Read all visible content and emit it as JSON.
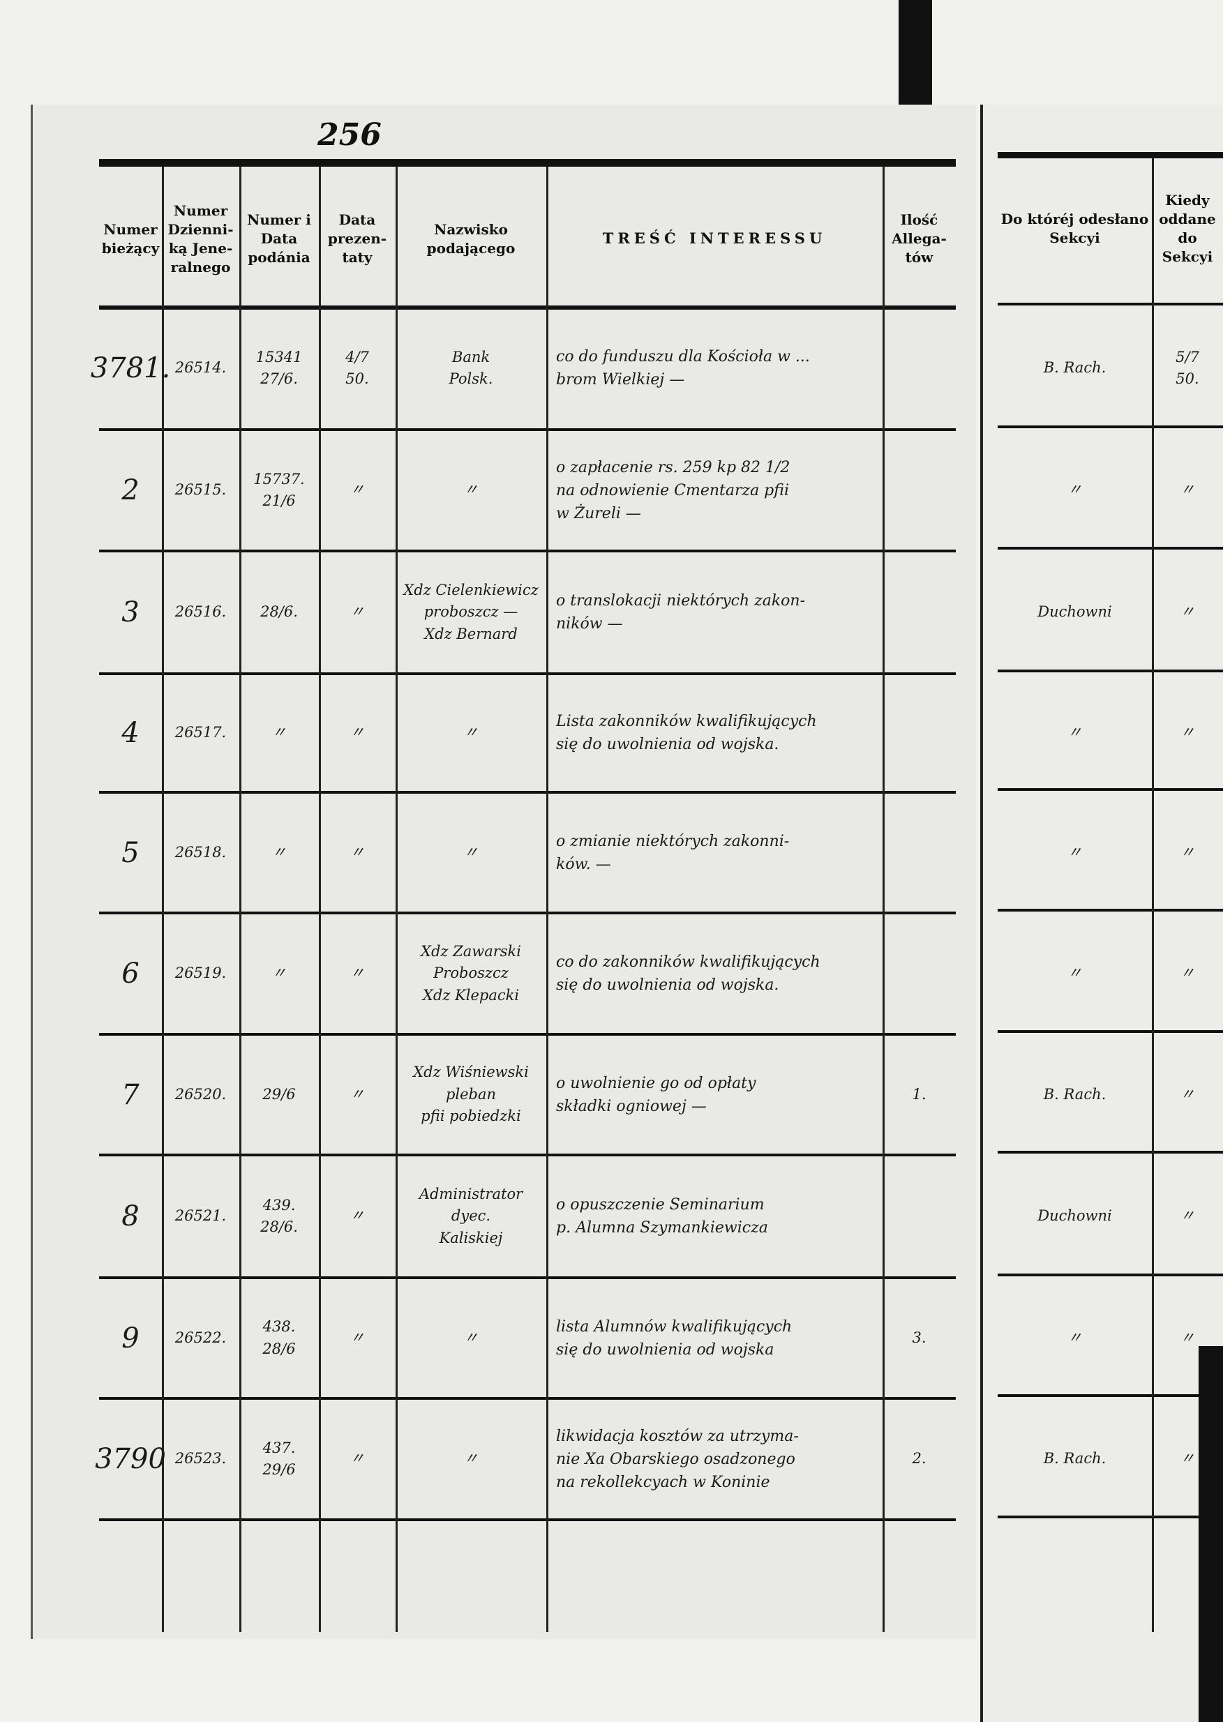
{
  "page_number": "256",
  "headers": {
    "numer_biezacy": "Numer bieżący",
    "numer_dziennika": "Numer Dzienni-ką Jene-ralnego",
    "numer_i_data": "Numer i Data podánia",
    "data_prezentaty": "Data prezen-taty",
    "nazwisko": "Nazwisko podającego",
    "tresc": "TREŚĆ INTERESSU",
    "ilosc": "Ilość Allega-tów",
    "do_ktorej": "Do któréj odesłano Sekcyi",
    "kiedy": "Kiedy oddane do Sekcyi"
  },
  "rows": [
    {
      "numer": "3781.",
      "dziennik": "26514.",
      "numer_data": "15341\n27/6.",
      "prezentata": "4/7\n50.",
      "nazwisko": "Bank\nPolsk.",
      "tresc": "co do funduszu dla Kościoła w ...\nbrom Wielkiej —",
      "ilosc": "",
      "sekcja": "B. Rach.",
      "kiedy": "5/7\n50."
    },
    {
      "numer": "2",
      "dziennik": "26515.",
      "numer_data": "15737.\n21/6",
      "prezentata": "〃",
      "nazwisko": "〃",
      "tresc": "o zapłacenie rs. 259 kp 82 1/2\nna odnowienie Cmentarza pfii\nw Żureli —",
      "ilosc": "",
      "sekcja": "〃",
      "kiedy": "〃"
    },
    {
      "numer": "3",
      "dziennik": "26516.",
      "numer_data": "28/6.",
      "prezentata": "〃",
      "nazwisko": "Xdz Cielenkiewicz\nproboszcz —\nXdz Bernard",
      "tresc": "o translokacji niektórych zakon-\nników —",
      "ilosc": "",
      "sekcja": "Duchowni",
      "kiedy": "〃"
    },
    {
      "numer": "4",
      "dziennik": "26517.",
      "numer_data": "〃",
      "prezentata": "〃",
      "nazwisko": "〃",
      "tresc": "Lista zakonników kwalifikujących\nsię do uwolnienia od wojska.",
      "ilosc": "",
      "sekcja": "〃",
      "kiedy": "〃"
    },
    {
      "numer": "5",
      "dziennik": "26518.",
      "numer_data": "〃",
      "prezentata": "〃",
      "nazwisko": "〃",
      "tresc": "o zmianie niektórych zakonni-\nków. —",
      "ilosc": "",
      "sekcja": "〃",
      "kiedy": "〃"
    },
    {
      "numer": "6",
      "dziennik": "26519.",
      "numer_data": "〃",
      "prezentata": "〃",
      "nazwisko": "Xdz Zawarski\nProboszcz\nXdz Klepacki",
      "tresc": "co do zakonników kwalifikujących\nsię do uwolnienia od wojska.",
      "ilosc": "",
      "sekcja": "〃",
      "kiedy": "〃"
    },
    {
      "numer": "7",
      "dziennik": "26520.",
      "numer_data": "29/6",
      "prezentata": "〃",
      "nazwisko": "Xdz Wiśniewski\npleban\npfii pobiedzki",
      "tresc": "o uwolnienie go od opłaty\nskładki ogniowej —",
      "ilosc": "1.",
      "sekcja": "B. Rach.",
      "kiedy": "〃"
    },
    {
      "numer": "8",
      "dziennik": "26521.",
      "numer_data": "439.\n28/6.",
      "prezentata": "〃",
      "nazwisko": "Administrator\ndyec.\nKaliskiej",
      "tresc": "o opuszczenie Seminarium\np. Alumna Szymankiewicza",
      "ilosc": "",
      "sekcja": "Duchowni",
      "kiedy": "〃"
    },
    {
      "numer": "9",
      "dziennik": "26522.",
      "numer_data": "438.\n28/6",
      "prezentata": "〃",
      "nazwisko": "〃",
      "tresc": "lista Alumnów kwalifikujących\nsię do uwolnienia od wojska",
      "ilosc": "3.",
      "sekcja": "〃",
      "kiedy": "〃"
    },
    {
      "numer": "3790",
      "dziennik": "26523.",
      "numer_data": "437.\n29/6",
      "prezentata": "〃",
      "nazwisko": "〃",
      "tresc": "likwidacja kosztów za utrzyma-\nnie Xa Obarskiego osadzonego\nna rekollekcyach w Koninie",
      "ilosc": "2.",
      "sekcja": "B. Rach.",
      "kiedy": "〃"
    }
  ]
}
